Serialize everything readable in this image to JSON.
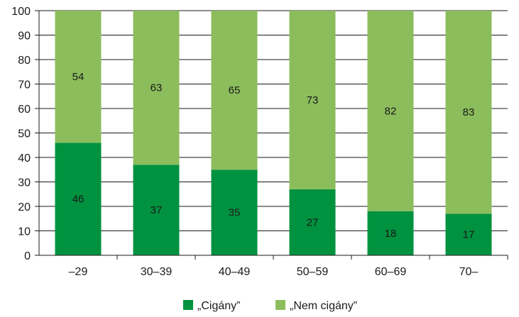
{
  "chart_data": {
    "type": "bar",
    "stacked": true,
    "categories": [
      "–29",
      "30–39",
      "40–49",
      "50–59",
      "60–69",
      "70–"
    ],
    "series": [
      {
        "name": "„Cigány”",
        "values": [
          46,
          37,
          35,
          27,
          18,
          17
        ],
        "color": "#00923f"
      },
      {
        "name": "„Nem cigány”",
        "values": [
          54,
          63,
          65,
          73,
          82,
          83
        ],
        "color": "#8cbd5c"
      }
    ],
    "title": "",
    "xlabel": "",
    "ylabel": "",
    "ylim": [
      0,
      100
    ],
    "yticks": [
      0,
      10,
      20,
      30,
      40,
      50,
      60,
      70,
      80,
      90,
      100
    ],
    "grid": true,
    "legend_position": "bottom"
  }
}
